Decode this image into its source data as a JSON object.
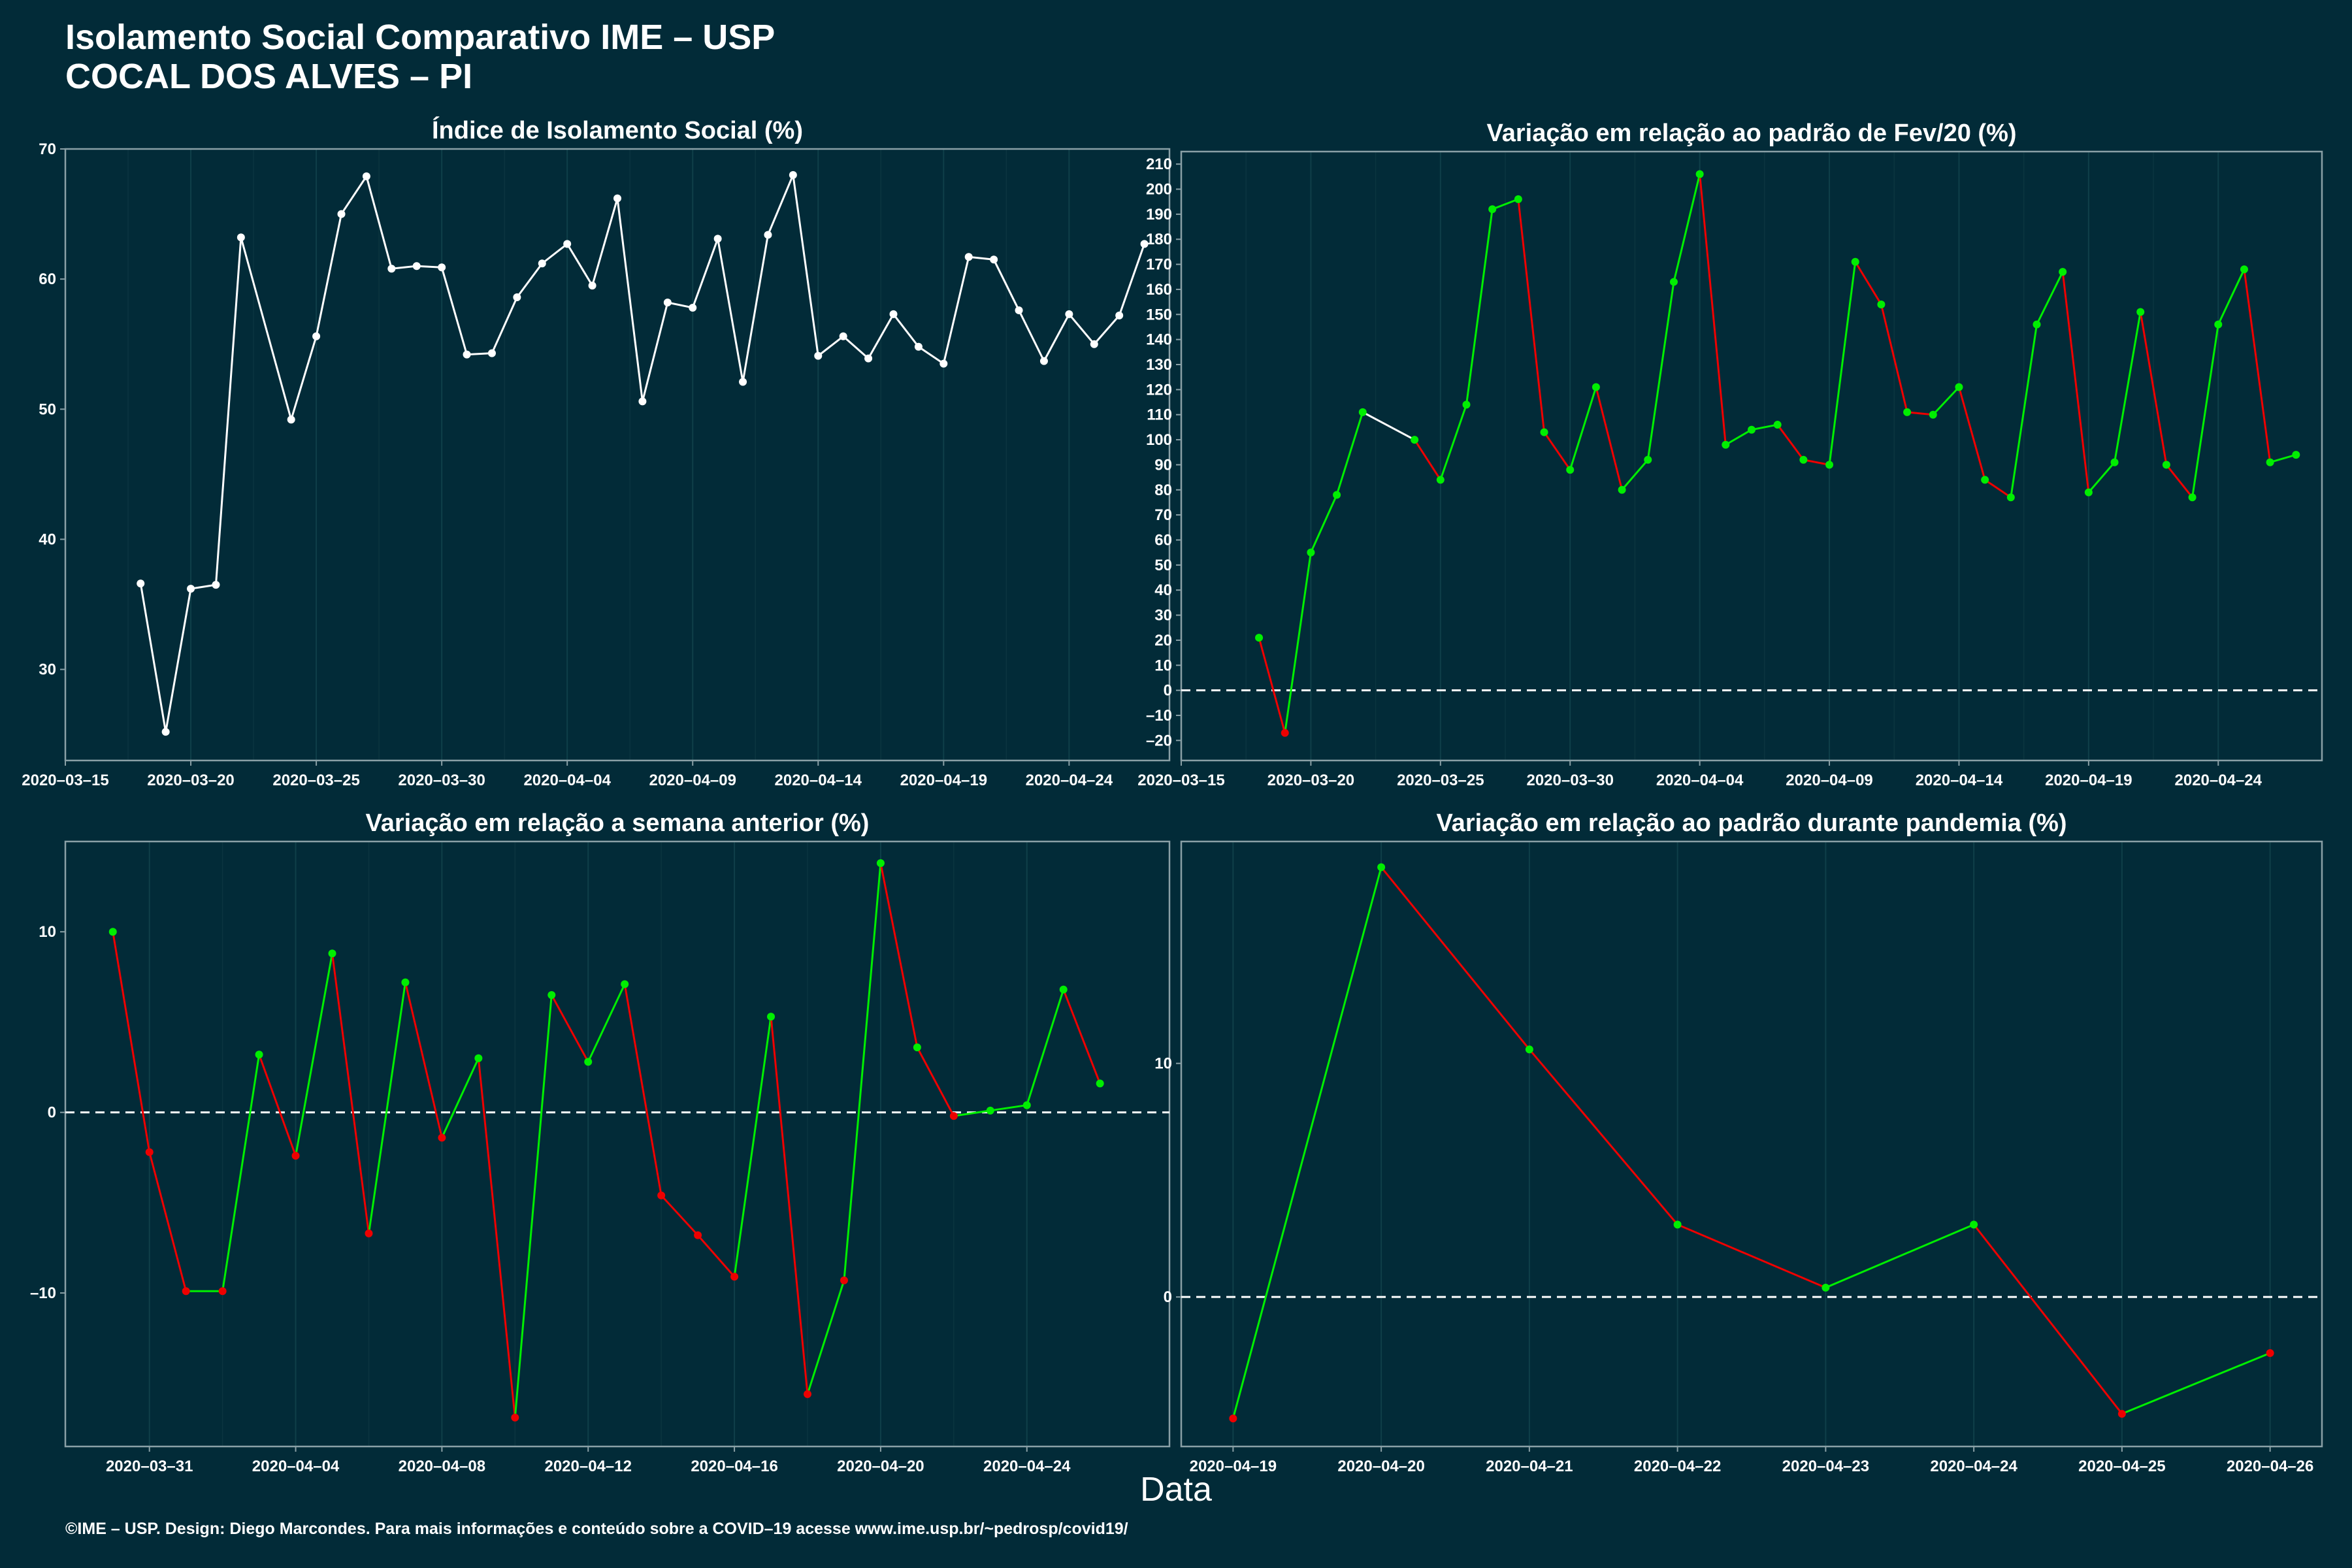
{
  "title_line1": "Isolamento Social Comparativo IME – USP",
  "title_line2": "COCAL DOS ALVES – PI",
  "x_axis_title": "Data",
  "footer": "©IME – USP. Design: Diego Marcondes. Para mais informações e conteúdo sobre a COVID–19 acesse www.ime.usp.br/~pedrosp/covid19/",
  "colors": {
    "background": "#022b38",
    "white": "#ffffff",
    "positive": "#00ee00",
    "negative": "#ee0000",
    "grid": "#0f3f49"
  },
  "chart_data": [
    {
      "type": "line",
      "title": "Índice de Isolamento Social (%)",
      "x_start": "2020-03-18",
      "series": [
        {
          "color": "white",
          "values": [
            36.6,
            25.2,
            36.2,
            36.5,
            63.2,
            null,
            49.2,
            55.6,
            65.0,
            67.9,
            60.8,
            61.0,
            60.9,
            54.2,
            54.3,
            58.6,
            61.2,
            62.7,
            59.5,
            66.2,
            50.6,
            58.2,
            57.8,
            63.1,
            52.1,
            63.4,
            68.0,
            54.1,
            55.6,
            53.9,
            57.3,
            54.8,
            53.5,
            61.7,
            61.5,
            57.6,
            53.7,
            57.3,
            55.0,
            57.2,
            62.7
          ]
        }
      ],
      "x_ticks": [
        "2020–03–15",
        "2020–03–20",
        "2020–03–25",
        "2020–03–30",
        "2020–04–04",
        "2020–04–09",
        "2020–04–14",
        "2020–04–19",
        "2020–04–24"
      ],
      "y_ticks": [
        "30",
        "40",
        "50",
        "60",
        "70"
      ],
      "ylim": [
        23,
        70
      ],
      "xlim": [
        "2020-03-15",
        "2020-04-28"
      ],
      "grid": "vertical"
    },
    {
      "type": "line",
      "title": "Variação em relação ao padrão de Fev/20 (%)",
      "x_start": "2020-03-18",
      "series": [
        {
          "color": "green-positive/red-negative",
          "values": [
            21,
            -17,
            55,
            78,
            111,
            null,
            100,
            84,
            114,
            192,
            196,
            103,
            88,
            121,
            80,
            92,
            163,
            206,
            98,
            104,
            106,
            92,
            90,
            171,
            154,
            111,
            110,
            121,
            84,
            77,
            146,
            167,
            79,
            91,
            151,
            90,
            77,
            146,
            168,
            91,
            94
          ]
        }
      ],
      "x_ticks": [
        "2020–03–15",
        "2020–03–20",
        "2020–03–25",
        "2020–03–30",
        "2020–04–04",
        "2020–04–09",
        "2020–04–14",
        "2020–04–19",
        "2020–04–24"
      ],
      "y_ticks": [
        "–20",
        "–10",
        "0",
        "10",
        "20",
        "30",
        "40",
        "50",
        "60",
        "70",
        "80",
        "90",
        "100",
        "110",
        "120",
        "130",
        "140",
        "150",
        "160",
        "170",
        "180",
        "190",
        "200",
        "210"
      ],
      "ylim": [
        -28,
        215
      ],
      "xlim": [
        "2020-03-15",
        "2020-04-28"
      ],
      "reference_line": 0,
      "grid": "vertical"
    },
    {
      "type": "line",
      "title": "Variação em relação a semana anterior (%)",
      "x_start": "2020-03-30",
      "series": [
        {
          "color": "green-positive/red-negative",
          "values": [
            10.0,
            -2.2,
            -9.9,
            -9.9,
            3.2,
            -2.4,
            8.8,
            -6.7,
            7.2,
            -1.4,
            3.0,
            -16.9,
            6.5,
            2.8,
            7.1,
            -4.6,
            -6.8,
            -9.1,
            5.3,
            -15.6,
            -9.3,
            13.8,
            3.6,
            -0.2,
            0.1,
            0.4,
            6.8,
            1.6
          ]
        }
      ],
      "x_ticks": [
        "2020–03–31",
        "2020–04–04",
        "2020–04–08",
        "2020–04–12",
        "2020–04–16",
        "2020–04–20",
        "2020–04–24"
      ],
      "y_ticks": [
        "–10",
        "0",
        "10"
      ],
      "ylim": [
        -18.5,
        15
      ],
      "xlim": [
        "2020-03-28.7",
        "2020-04-27.9"
      ],
      "reference_line": 0,
      "grid": "vertical"
    },
    {
      "type": "line",
      "title": "Variação em relação ao padrão durante pandemia (%)",
      "x_start": "2020-04-19",
      "series": [
        {
          "color": "green-positive/red-negative",
          "values": [
            -5.2,
            18.4,
            10.6,
            3.1,
            0.4,
            3.1,
            -5.0,
            -2.4
          ]
        }
      ],
      "x_ticks": [
        "2020–04–19",
        "2020–04–20",
        "2020–04–21",
        "2020–04–22",
        "2020–04–23",
        "2020–04–24",
        "2020–04–25",
        "2020–04–26"
      ],
      "y_ticks": [
        "0",
        "10"
      ],
      "ylim": [
        -6.4,
        19.5
      ],
      "xlim": [
        "2020-04-18.65",
        "2020-04-26.35"
      ],
      "reference_line": 0,
      "grid": "vertical"
    }
  ]
}
